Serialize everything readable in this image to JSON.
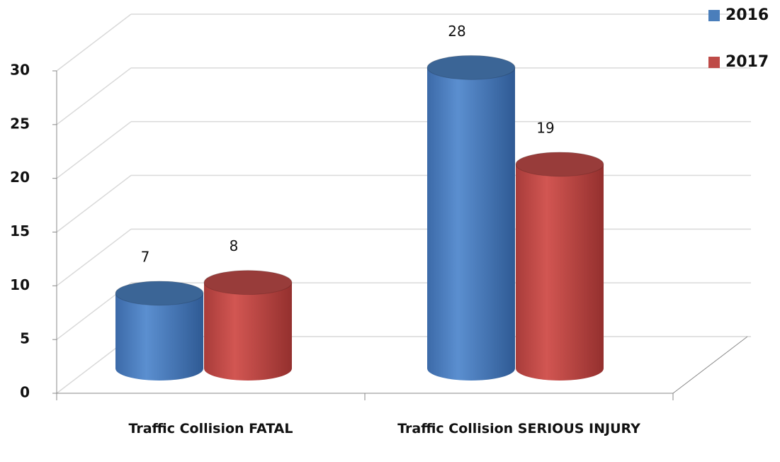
{
  "chart_data": {
    "type": "bar3d",
    "categories": [
      "Traffic Collision  FATAL",
      "Traffic Collision  SERIOUS INJURY"
    ],
    "series": [
      {
        "name": "2016",
        "color": "#4a7ebb",
        "values": [
          7,
          28
        ]
      },
      {
        "name": "2017",
        "color": "#be4b48",
        "values": [
          8,
          19
        ]
      }
    ],
    "ylim": [
      0,
      30
    ],
    "yticks": [
      0,
      5,
      10,
      15,
      20,
      25,
      30
    ],
    "grid": true,
    "legend": "top-right"
  }
}
